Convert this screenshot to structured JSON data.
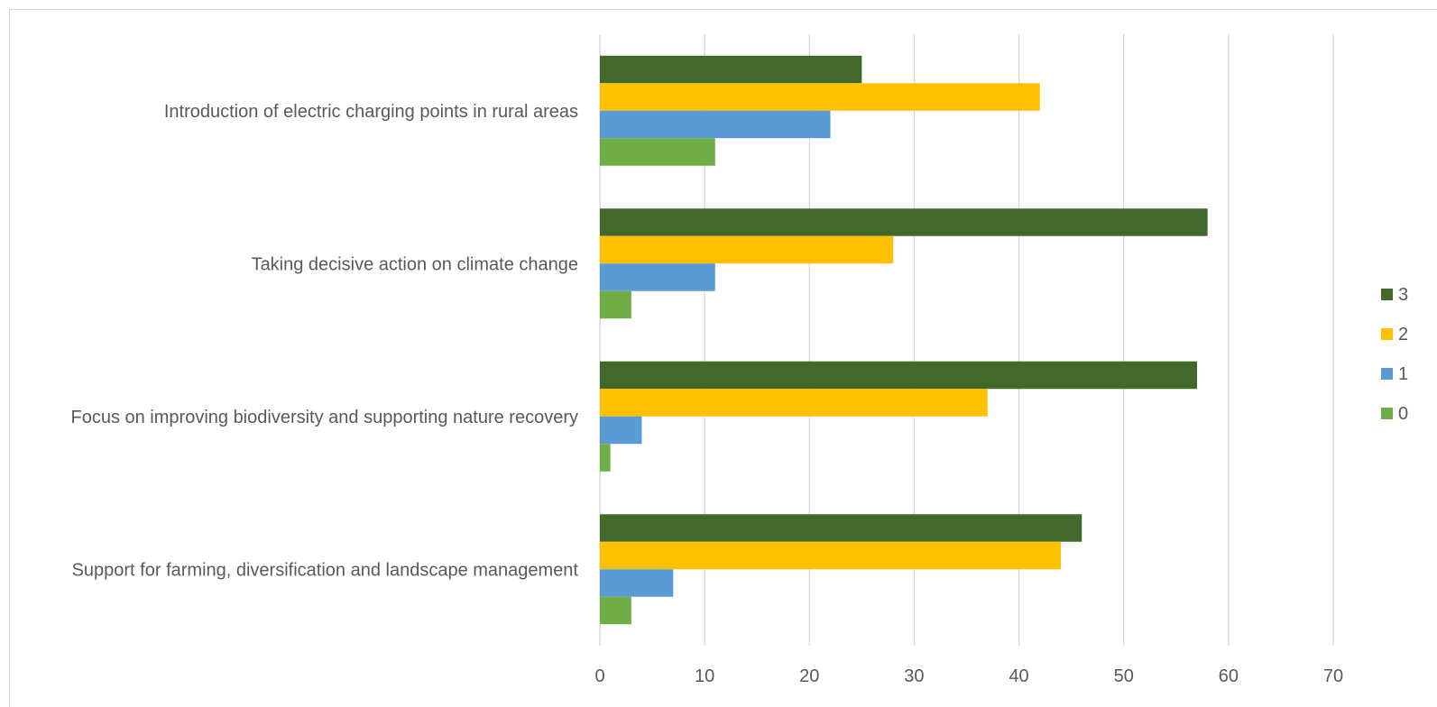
{
  "chart_data": {
    "type": "bar",
    "orientation": "horizontal",
    "title": "",
    "xlabel": "",
    "ylabel": "",
    "categories": [
      "Introduction of electric charging points in rural areas",
      "Taking decisive action on climate change",
      "Focus on improving biodiversity and supporting nature recovery",
      "Support for farming, diversification and landscape management"
    ],
    "series": [
      {
        "name": "3",
        "color": "#43682b",
        "values": [
          25,
          58,
          57,
          46
        ]
      },
      {
        "name": "2",
        "color": "#ffc000",
        "values": [
          42,
          28,
          37,
          44
        ]
      },
      {
        "name": "1",
        "color": "#5b9bd5",
        "values": [
          22,
          11,
          4,
          7
        ]
      },
      {
        "name": "0",
        "color": "#70ad47",
        "values": [
          11,
          3,
          1,
          3
        ]
      }
    ],
    "xlim": [
      0,
      70
    ],
    "xticks": [
      0,
      10,
      20,
      30,
      40,
      50,
      60,
      70
    ],
    "grid": true,
    "gridline_color": "#d9d9d9",
    "legend_position": "right"
  }
}
